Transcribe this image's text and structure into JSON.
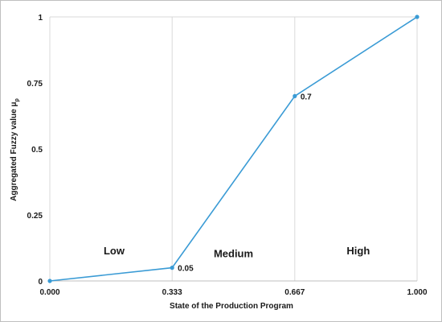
{
  "chart_data": {
    "type": "line",
    "xlabel": "State of the Production Program",
    "ylabel": "Aggregated Fuzzy value μ",
    "ylabel_sub": "p",
    "x_ticks": [
      "0.000",
      "0.333",
      "0.667",
      "1.000"
    ],
    "y_ticks": [
      "0",
      "0.25",
      "0.5",
      "0.75",
      "1"
    ],
    "xlim": [
      0,
      1
    ],
    "ylim": [
      0,
      1
    ],
    "grid": "vertical",
    "series": [
      {
        "color": "#3a9bd5",
        "points": [
          {
            "x": 0.0,
            "y": 0.0
          },
          {
            "x": 0.333,
            "y": 0.05
          },
          {
            "x": 0.667,
            "y": 0.7
          },
          {
            "x": 1.0,
            "y": 1.0
          }
        ]
      }
    ],
    "data_labels": [
      {
        "x": 0.333,
        "y": 0.05,
        "text": "0.05"
      },
      {
        "x": 0.667,
        "y": 0.7,
        "text": "0.7"
      }
    ],
    "regions": [
      {
        "text": "Low",
        "x": 0.175,
        "y": 0.1
      },
      {
        "text": "Medium",
        "x": 0.5,
        "y": 0.09
      },
      {
        "text": "High",
        "x": 0.84,
        "y": 0.1
      }
    ]
  }
}
